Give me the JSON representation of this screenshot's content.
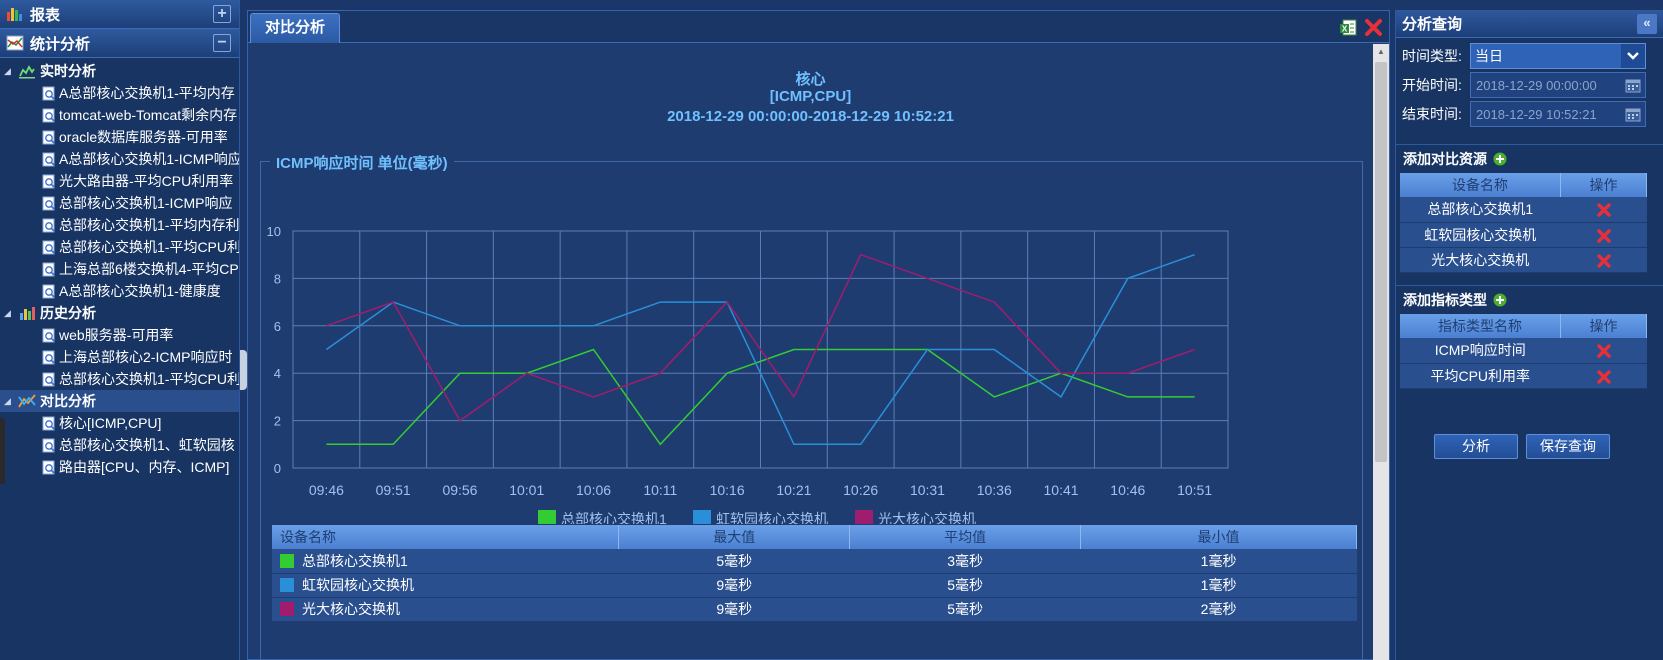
{
  "left_sidebar": {
    "report_title": "报表",
    "stats_title": "统计分析",
    "groups": [
      {
        "label": "实时分析",
        "items": [
          "A总部核心交换机1-平均内存",
          "tomcat-web-Tomcat剩余内存",
          "oracle数据库服务器-可用率",
          "A总部核心交换机1-ICMP响应",
          "光大路由器-平均CPU利用率",
          "总部核心交换机1-ICMP响应",
          "总部核心交换机1-平均内存利",
          "总部核心交换机1-平均CPU利",
          "上海总部6楼交换机4-平均CP",
          "A总部核心交换机1-健康度"
        ]
      },
      {
        "label": "历史分析",
        "items": [
          "web服务器-可用率",
          "上海总部核心2-ICMP响应时",
          "总部核心交换机1-平均CPU利"
        ]
      },
      {
        "label": "对比分析",
        "items": [
          "核心[ICMP,CPU]",
          "总部核心交换机1、虹软园核",
          "路由器[CPU、内存、ICMP]"
        ]
      }
    ]
  },
  "center": {
    "tab_label": "对比分析",
    "title_line1": "核心",
    "title_line2": "[ICMP,CPU]",
    "title_line3": "2018-12-29 00:00:00-2018-12-29 10:52:21",
    "section_title": "ICMP响应时间 单位(毫秒)",
    "table": {
      "headers": [
        "设备名称",
        "最大值",
        "平均值",
        "最小值"
      ],
      "rows": [
        {
          "name": "总部核心交换机1",
          "max": "5毫秒",
          "avg": "3毫秒",
          "min": "1毫秒",
          "color": "#33cc33"
        },
        {
          "name": "虹软园核心交换机",
          "max": "9毫秒",
          "avg": "5毫秒",
          "min": "1毫秒",
          "color": "#2a8fd8"
        },
        {
          "name": "光大核心交换机",
          "max": "9毫秒",
          "avg": "5毫秒",
          "min": "2毫秒",
          "color": "#a01c6e"
        }
      ]
    }
  },
  "chart_data": {
    "type": "line",
    "title": "ICMP响应时间 单位(毫秒)",
    "x": [
      "09:46",
      "09:51",
      "09:56",
      "10:01",
      "10:06",
      "10:11",
      "10:16",
      "10:21",
      "10:26",
      "10:31",
      "10:36",
      "10:41",
      "10:46",
      "10:51"
    ],
    "yticks": [
      0,
      2,
      4,
      6,
      8,
      10
    ],
    "ylim": [
      0,
      10
    ],
    "grid": true,
    "legend": "bottom-center",
    "series": [
      {
        "name": "总部核心交换机1",
        "color": "#33cc33",
        "values": [
          1,
          1,
          4,
          4,
          5,
          1,
          4,
          5,
          5,
          5,
          3,
          4,
          3,
          3
        ]
      },
      {
        "name": "虹软园核心交换机",
        "color": "#2a8fd8",
        "values": [
          5,
          7,
          6,
          6,
          6,
          7,
          7,
          1,
          1,
          5,
          5,
          3,
          8,
          9
        ]
      },
      {
        "name": "光大核心交换机",
        "color": "#a01c6e",
        "values": [
          6,
          7,
          2,
          4,
          3,
          4,
          7,
          3,
          9,
          8,
          7,
          4,
          4,
          5
        ]
      }
    ]
  },
  "right_panel": {
    "title": "分析查询",
    "time_type_label": "时间类型:",
    "time_type_value": "当日",
    "start_label": "开始时间:",
    "start_value": "2018-12-29 00:00:00",
    "end_label": "结束时间:",
    "end_value": "2018-12-29 10:52:21",
    "resource_section": "添加对比资源",
    "resource_headers": [
      "设备名称",
      "操作"
    ],
    "resources": [
      "总部核心交换机1",
      "虹软园核心交换机",
      "光大核心交换机"
    ],
    "metric_section": "添加指标类型",
    "metric_headers": [
      "指标类型名称",
      "操作"
    ],
    "metrics": [
      "ICMP响应时间",
      "平均CPU利用率"
    ],
    "analyze_button": "分析",
    "save_button": "保存查询"
  }
}
